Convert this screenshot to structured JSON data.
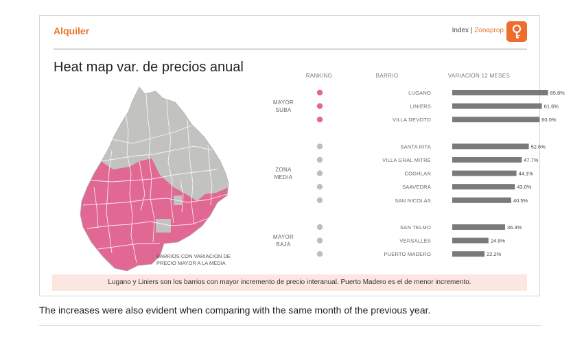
{
  "header": {
    "brand": "Alquiler",
    "index_prefix": "Index | ",
    "index_source": "Zonaprop",
    "logo_icon": "zonaprop-key-icon",
    "logo_color": "#ee6c2c"
  },
  "main_title": "Heat map var. de precios anual",
  "legend": {
    "text": "BARRIOS CON VARIACION DE PRECIO MAYOR A LA MEDIA",
    "color": "#e06893"
  },
  "chart_data": {
    "type": "bar",
    "orientation": "horizontal",
    "column_headers": [
      "RANKING",
      "BARRIO",
      "VARIACIÓN 12 MESES"
    ],
    "groups": [
      {
        "label_lines": [
          "MAYOR",
          "SUBA"
        ],
        "color": "#e06893",
        "items": [
          {
            "barrio": "LUGANO",
            "value": 65.8,
            "label": "65.8%"
          },
          {
            "barrio": "LINIERS",
            "value": 61.6,
            "label": "61.6%"
          },
          {
            "barrio": "VILLA DEVOTO",
            "value": 60.0,
            "label": "60.0%"
          }
        ]
      },
      {
        "label_lines": [
          "ZONA",
          "MEDIA"
        ],
        "color": "#bdbdbd",
        "items": [
          {
            "barrio": "SANTA RITA",
            "value": 52.6,
            "label": "52.6%"
          },
          {
            "barrio": "VILLA GRAL MITRE",
            "value": 47.7,
            "label": "47.7%"
          },
          {
            "barrio": "COGHLAN",
            "value": 44.1,
            "label": "44.1%"
          },
          {
            "barrio": "SAAVEDRA",
            "value": 43.0,
            "label": "43.0%"
          },
          {
            "barrio": "SAN NICOLÁS",
            "value": 40.5,
            "label": "40.5%"
          }
        ]
      },
      {
        "label_lines": [
          "MAYOR",
          "BAJA"
        ],
        "color": "#bdbdbd",
        "items": [
          {
            "barrio": "SAN TELMO",
            "value": 36.3,
            "label": "36.3%"
          },
          {
            "barrio": "VERSALLES",
            "value": 24.9,
            "label": "24.9%"
          },
          {
            "barrio": "PUERTO MADERO",
            "value": 22.2,
            "label": "22.2%"
          }
        ]
      }
    ],
    "bar_color": "#7a7a7a",
    "xlim": [
      0,
      66
    ]
  },
  "footer_note": "Lugano y Liniers son los barrios con mayor incremento de precio interanual. Puerto Madero es el de menor incremento.",
  "caption": "The increases were also evident when comparing with the same month of the previous year."
}
